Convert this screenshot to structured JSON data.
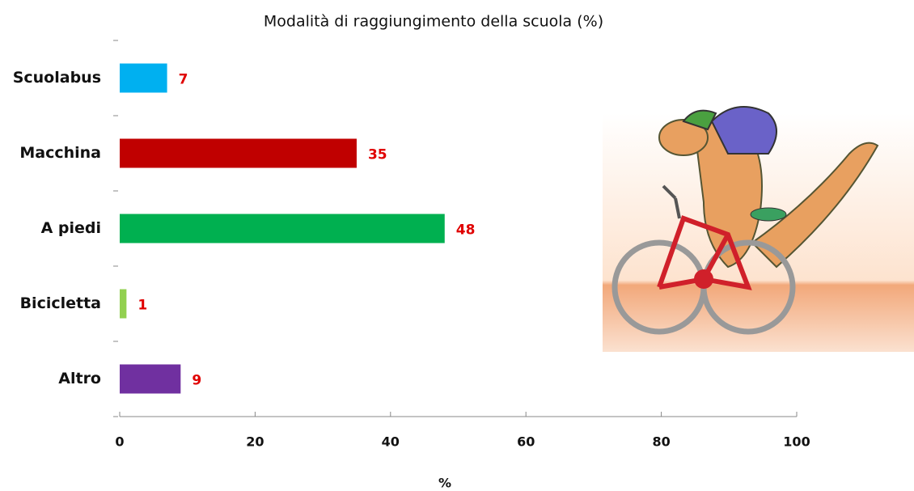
{
  "chart_data": {
    "type": "bar",
    "orientation": "horizontal",
    "title": "Modalità di raggiungimento della scuola (%)",
    "x_label": "%",
    "categories": [
      "Scuolabus",
      "Macchina",
      "A piedi",
      "Bicicletta",
      "Altro"
    ],
    "values": [
      7,
      35,
      48,
      1,
      9
    ],
    "colors": [
      "#00b0f0",
      "#c00000",
      "#00b050",
      "#92d050",
      "#7030a0"
    ],
    "xlim": [
      0,
      100
    ],
    "xticks": [
      0,
      20,
      40,
      60,
      80,
      100
    ],
    "grid": false
  }
}
